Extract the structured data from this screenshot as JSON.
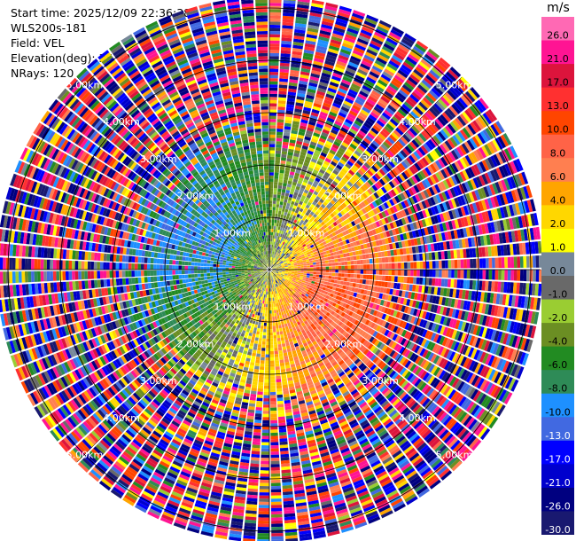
{
  "header": {
    "start_time": "Start time: 2025/12/09 22:36:38",
    "station": "WLS200s-181",
    "field": "Field: VEL",
    "elevation": "Elevation(deg): 35.00",
    "nrays": "NRays: 120"
  },
  "colorbar": {
    "unit": "m/s",
    "ticks": [
      "26.0",
      "21.0",
      "17.0",
      "13.0",
      "10.0",
      "8.0",
      "6.0",
      "4.0",
      "2.0",
      "1.0",
      "0.0",
      "-1.0",
      "-2.0",
      "-4.0",
      "-6.0",
      "-8.0",
      "-10.0",
      "-13.0",
      "-17.0",
      "-21.0",
      "-26.0",
      "-30.0"
    ],
    "colors": [
      "#ff69b4",
      "#ff1493",
      "#dc143c",
      "#ff3030",
      "#ff4500",
      "#ff6347",
      "#ff7f50",
      "#ffa500",
      "#ffd700",
      "#ffff00",
      "#778899",
      "#696969",
      "#9acd32",
      "#6b8e23",
      "#228b22",
      "#2e8b57",
      "#1e90ff",
      "#4169e1",
      "#0000ff",
      "#0000cd",
      "#000080",
      "#191970"
    ]
  },
  "chart_data": {
    "type": "heatmap",
    "projection": "PPI polar scan",
    "field": "VEL",
    "unit": "m/s",
    "elevation_deg": 35.0,
    "n_rays": 120,
    "range_rings_km": [
      1.0,
      2.0,
      3.0,
      4.0,
      5.0
    ],
    "range_labels": [
      "1.00km",
      "2.00km",
      "3.00km",
      "4.00km",
      "5.00km"
    ],
    "value_range": [
      -30.0,
      26.0
    ],
    "pattern": "Dipole: positive velocities (orange/red) toward east-southeast, negative velocities (green/blue) toward west-northwest within ~2 km; noisy random velocities beyond ~2.5 km"
  }
}
